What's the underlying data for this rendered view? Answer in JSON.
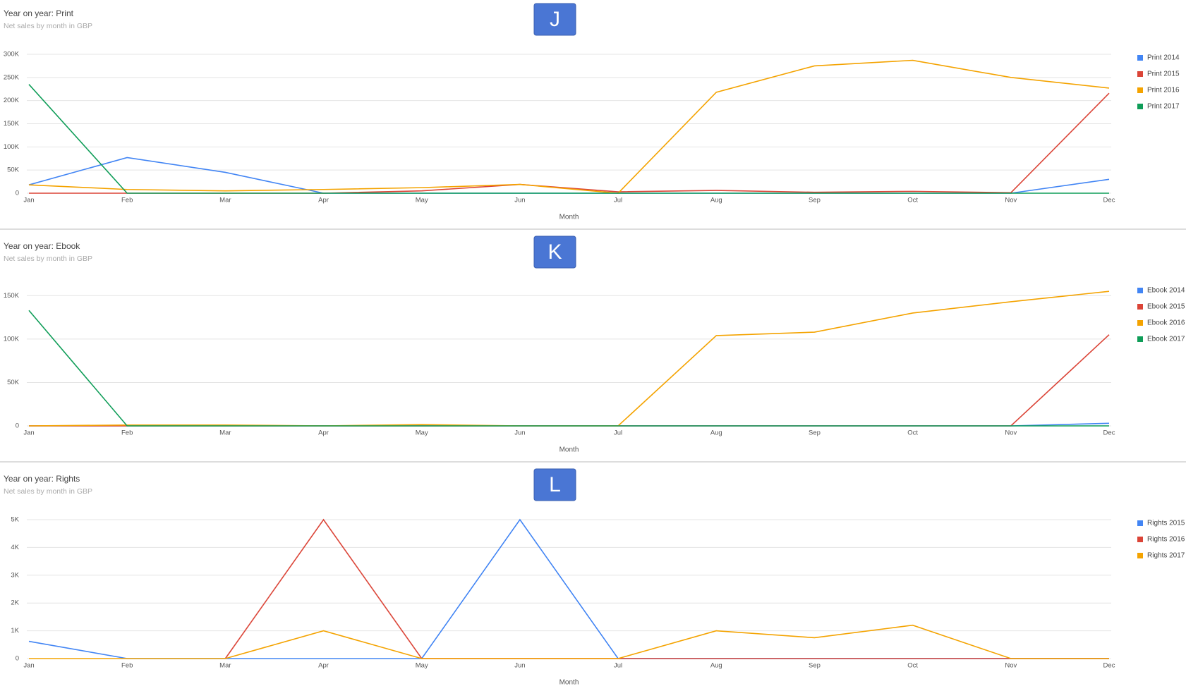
{
  "chart_data": [
    {
      "type": "line",
      "title": "Year on year: Print",
      "subtitle": "Net sales by month in GBP",
      "badge": "J",
      "x_label": "Month",
      "categories": [
        "Jan",
        "Feb",
        "Mar",
        "Apr",
        "May",
        "Jun",
        "Jul",
        "Aug",
        "Sep",
        "Oct",
        "Nov",
        "Dec"
      ],
      "ylim": [
        0,
        300000
      ],
      "yticks": [
        0,
        {
          "value": 50000,
          "label": "50K"
        },
        {
          "value": 100000,
          "label": "100K"
        },
        {
          "value": 150000,
          "label": "150K"
        },
        {
          "value": 200000,
          "label": "200K"
        },
        {
          "value": 250000,
          "label": "250K"
        },
        {
          "value": 300000,
          "label": "300K"
        }
      ],
      "grid": true,
      "legend": "right",
      "series": [
        {
          "name": "Print 2014",
          "color": "#4285f4",
          "values": [
            18000,
            77000,
            45000,
            0,
            0,
            0,
            0,
            0,
            0,
            0,
            0,
            30000
          ]
        },
        {
          "name": "Print 2015",
          "color": "#db4437",
          "values": [
            0,
            0,
            0,
            0,
            5000,
            19000,
            3000,
            6000,
            2000,
            4000,
            1000,
            216000
          ]
        },
        {
          "name": "Print 2016",
          "color": "#f4a300",
          "values": [
            18000,
            8000,
            5000,
            8000,
            12000,
            19000,
            0,
            218000,
            275000,
            287000,
            250000,
            227000
          ]
        },
        {
          "name": "Print 2017",
          "color": "#0f9d58",
          "values": [
            235000,
            0,
            0,
            0,
            0,
            0,
            0,
            0,
            0,
            0,
            0,
            0
          ]
        }
      ]
    },
    {
      "type": "line",
      "title": "Year on year: Ebook",
      "subtitle": "Net sales by month in GBP",
      "badge": "K",
      "x_label": "Month",
      "categories": [
        "Jan",
        "Feb",
        "Mar",
        "Apr",
        "May",
        "Jun",
        "Jul",
        "Aug",
        "Sep",
        "Oct",
        "Nov",
        "Dec"
      ],
      "ylim": [
        0,
        160000
      ],
      "yticks": [
        0,
        {
          "value": 50000,
          "label": "50K"
        },
        {
          "value": 100000,
          "label": "100K"
        },
        {
          "value": 150000,
          "label": "150K"
        }
      ],
      "grid": true,
      "legend": "right",
      "series": [
        {
          "name": "Ebook 2014",
          "color": "#4285f4",
          "values": [
            0,
            0,
            0,
            0,
            0,
            0,
            0,
            0,
            0,
            0,
            0,
            3000
          ]
        },
        {
          "name": "Ebook 2015",
          "color": "#db4437",
          "values": [
            0,
            0,
            0,
            0,
            0,
            0,
            0,
            0,
            0,
            0,
            0,
            105000
          ]
        },
        {
          "name": "Ebook 2016",
          "color": "#f4a300",
          "values": [
            0,
            1000,
            1000,
            0,
            1500,
            0,
            0,
            104000,
            108000,
            130000,
            143000,
            155000
          ]
        },
        {
          "name": "Ebook 2017",
          "color": "#0f9d58",
          "values": [
            133000,
            0,
            0,
            0,
            0,
            0,
            0,
            0,
            0,
            0,
            0,
            0
          ]
        }
      ]
    },
    {
      "type": "line",
      "title": "Year on year: Rights",
      "subtitle": "Net sales by month in GBP",
      "badge": "L",
      "x_label": "Month",
      "categories": [
        "Jan",
        "Feb",
        "Mar",
        "Apr",
        "May",
        "Jun",
        "Jul",
        "Aug",
        "Sep",
        "Oct",
        "Nov",
        "Dec"
      ],
      "ylim": [
        0,
        5000
      ],
      "yticks": [
        0,
        {
          "value": 1000,
          "label": "1K"
        },
        {
          "value": 2000,
          "label": "2K"
        },
        {
          "value": 3000,
          "label": "3K"
        },
        {
          "value": 4000,
          "label": "4K"
        },
        {
          "value": 5000,
          "label": "5K"
        }
      ],
      "grid": true,
      "legend": "right",
      "series": [
        {
          "name": "Rights 2015",
          "color": "#4285f4",
          "values": [
            620,
            0,
            0,
            0,
            0,
            5000,
            0,
            0,
            0,
            0,
            0,
            0
          ]
        },
        {
          "name": "Rights 2016",
          "color": "#db4437",
          "values": [
            null,
            null,
            0,
            5000,
            0,
            0,
            0,
            0,
            0,
            0,
            0,
            0
          ]
        },
        {
          "name": "Rights 2017",
          "color": "#f4a300",
          "values": [
            0,
            0,
            0,
            1000,
            0,
            0,
            0,
            1000,
            750,
            1200,
            0,
            0
          ]
        }
      ]
    }
  ]
}
